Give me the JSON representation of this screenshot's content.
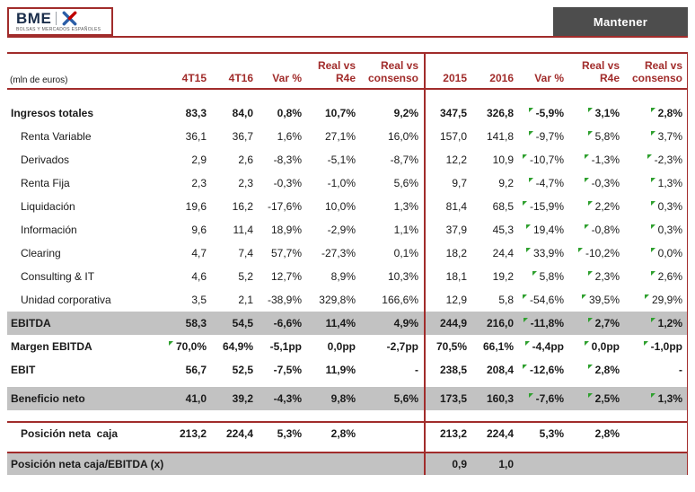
{
  "header": {
    "logo_text": "BME",
    "logo_subtext": "BOLSAS Y MERCADOS ESPAÑOLES",
    "rating": "Mantener"
  },
  "colors": {
    "accent_red": "#A12C2B",
    "band_gray": "#C2C2C2",
    "flag_green": "#2EA02E",
    "rating_bg": "#4D4D4D",
    "bme_dark": "#1B2E4B",
    "bme_blue": "#2B5EA7",
    "bme_red": "#C00000"
  },
  "table": {
    "unit_label": "(mln de euros)",
    "columns": [
      "4T15",
      "4T16",
      "Var %",
      "Real vs\nR4e",
      "Real vs\nconsenso",
      "2015",
      "2016",
      "Var %",
      "Real vs\nR4e",
      "Real vs\nconsenso"
    ],
    "rows": [
      {
        "label": "Ingresos totales",
        "bold": true,
        "cells": [
          "83,3",
          "84,0",
          "0,8%",
          "10,7%",
          "9,2%",
          "347,5",
          "326,8",
          "-5,9%",
          "3,1%",
          "2,8%"
        ]
      },
      {
        "label": "Renta Variable",
        "indent": true,
        "cells": [
          "36,1",
          "36,7",
          "1,6%",
          "27,1%",
          "16,0%",
          "157,0",
          "141,8",
          "-9,7%",
          "5,8%",
          "3,7%"
        ]
      },
      {
        "label": "Derivados",
        "indent": true,
        "cells": [
          "2,9",
          "2,6",
          "-8,3%",
          "-5,1%",
          "-8,7%",
          "12,2",
          "10,9",
          "-10,7%",
          "-1,3%",
          "-2,3%"
        ]
      },
      {
        "label": "Renta Fija",
        "indent": true,
        "cells": [
          "2,3",
          "2,3",
          "-0,3%",
          "-1,0%",
          "5,6%",
          "9,7",
          "9,2",
          "-4,7%",
          "-0,3%",
          "1,3%"
        ]
      },
      {
        "label": "Liquidación",
        "indent": true,
        "cells": [
          "19,6",
          "16,2",
          "-17,6%",
          "10,0%",
          "1,3%",
          "81,4",
          "68,5",
          "-15,9%",
          "2,2%",
          "0,3%"
        ]
      },
      {
        "label": "Información",
        "indent": true,
        "cells": [
          "9,6",
          "11,4",
          "18,9%",
          "-2,9%",
          "1,1%",
          "37,9",
          "45,3",
          "19,4%",
          "-0,8%",
          "0,3%"
        ]
      },
      {
        "label": "Clearing",
        "indent": true,
        "cells": [
          "4,7",
          "7,4",
          "57,7%",
          "-27,3%",
          "0,1%",
          "18,2",
          "24,4",
          "33,9%",
          "-10,2%",
          "0,0%"
        ]
      },
      {
        "label": "Consulting & IT",
        "indent": true,
        "cells": [
          "4,6",
          "5,2",
          "12,7%",
          "8,9%",
          "10,3%",
          "18,1",
          "19,2",
          "5,8%",
          "2,3%",
          "2,6%"
        ]
      },
      {
        "label": "Unidad corporativa",
        "indent": true,
        "cells": [
          "3,5",
          "2,1",
          "-38,9%",
          "329,8%",
          "166,6%",
          "12,9",
          "5,8",
          "-54,6%",
          "39,5%",
          "29,9%"
        ]
      },
      {
        "label": "EBITDA",
        "bold": true,
        "band": true,
        "cells": [
          "58,3",
          "54,5",
          "-6,6%",
          "11,4%",
          "4,9%",
          "244,9",
          "216,0",
          "-11,8%",
          "2,7%",
          "1,2%"
        ]
      },
      {
        "label": "Margen EBITDA",
        "bold": true,
        "cells": [
          "70,0%",
          "64,9%",
          "-5,1pp",
          "0,0pp",
          "-2,7pp",
          "70,5%",
          "66,1%",
          "-4,4pp",
          "0,0pp",
          "-1,0pp"
        ]
      },
      {
        "label": "EBIT",
        "bold": true,
        "cells": [
          "56,7",
          "52,5",
          "-7,5%",
          "11,9%",
          "-",
          "238,5",
          "208,4",
          "-12,6%",
          "2,8%",
          "-"
        ]
      },
      {
        "label": "Beneficio neto",
        "bold": true,
        "band": true,
        "cells": [
          "41,0",
          "39,2",
          "-4,3%",
          "9,8%",
          "5,6%",
          "173,5",
          "160,3",
          "-7,6%",
          "2,5%",
          "1,3%"
        ]
      },
      {
        "label": "Posición neta  caja",
        "bold": true,
        "indent": true,
        "cells": [
          "213,2",
          "224,4",
          "5,3%",
          "2,8%",
          "",
          "213,2",
          "224,4",
          "5,3%",
          "2,8%",
          ""
        ]
      },
      {
        "label": "Posición neta caja/EBITDA (x)",
        "bold": true,
        "band": true,
        "cells": [
          "",
          "",
          "",
          "",
          "",
          "0,9",
          "1,0",
          "",
          "",
          ""
        ]
      }
    ],
    "flags": [
      [
        0,
        7
      ],
      [
        0,
        8
      ],
      [
        0,
        9
      ],
      [
        1,
        7
      ],
      [
        1,
        8
      ],
      [
        1,
        9
      ],
      [
        2,
        7
      ],
      [
        2,
        8
      ],
      [
        2,
        9
      ],
      [
        3,
        7
      ],
      [
        3,
        8
      ],
      [
        3,
        9
      ],
      [
        4,
        7
      ],
      [
        4,
        8
      ],
      [
        4,
        9
      ],
      [
        5,
        7
      ],
      [
        5,
        8
      ],
      [
        5,
        9
      ],
      [
        6,
        7
      ],
      [
        6,
        8
      ],
      [
        6,
        9
      ],
      [
        7,
        7
      ],
      [
        7,
        8
      ],
      [
        7,
        9
      ],
      [
        8,
        7
      ],
      [
        8,
        8
      ],
      [
        8,
        9
      ],
      [
        9,
        7
      ],
      [
        9,
        8
      ],
      [
        9,
        9
      ],
      [
        10,
        0
      ],
      [
        10,
        7
      ],
      [
        10,
        8
      ],
      [
        10,
        9
      ],
      [
        11,
        7
      ],
      [
        11,
        8
      ],
      [
        12,
        7
      ],
      [
        12,
        8
      ],
      [
        12,
        9
      ]
    ]
  }
}
